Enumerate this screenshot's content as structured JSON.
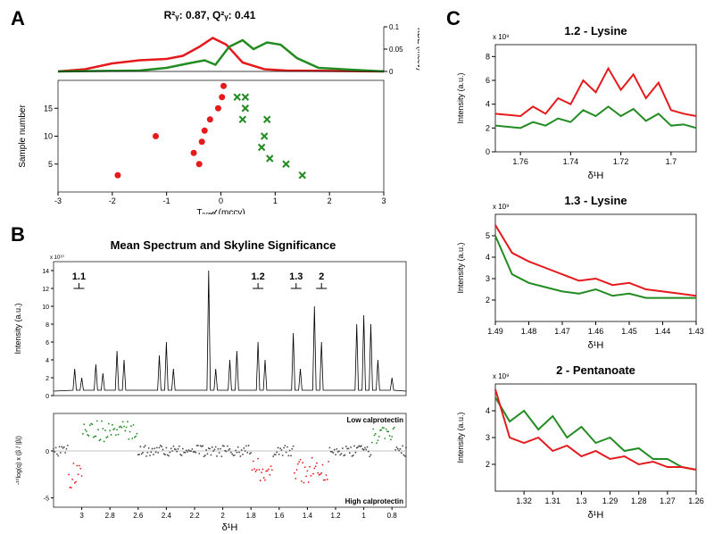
{
  "panelA": {
    "label": "A",
    "stats": "R²ᵧ: 0.87, Q²ᵧ: 0.41",
    "kde": {
      "xlim": [
        -3,
        3
      ],
      "ylim": [
        0,
        0.1
      ],
      "yticks": [
        0,
        0.05,
        0.1
      ],
      "red_curve": [
        [
          -3,
          0
        ],
        [
          -2.5,
          0.005
        ],
        [
          -2.0,
          0.018
        ],
        [
          -1.5,
          0.025
        ],
        [
          -1.0,
          0.028
        ],
        [
          -0.7,
          0.035
        ],
        [
          -0.4,
          0.055
        ],
        [
          -0.15,
          0.075
        ],
        [
          0.1,
          0.06
        ],
        [
          0.4,
          0.02
        ],
        [
          0.8,
          0.005
        ],
        [
          1.2,
          0.002
        ],
        [
          3,
          0
        ]
      ],
      "green_curve": [
        [
          -3,
          0
        ],
        [
          -1.5,
          0.002
        ],
        [
          -1.0,
          0.008
        ],
        [
          -0.6,
          0.018
        ],
        [
          -0.3,
          0.025
        ],
        [
          -0.1,
          0.015
        ],
        [
          0.15,
          0.055
        ],
        [
          0.4,
          0.07
        ],
        [
          0.6,
          0.05
        ],
        [
          0.85,
          0.065
        ],
        [
          1.1,
          0.06
        ],
        [
          1.4,
          0.03
        ],
        [
          1.8,
          0.008
        ],
        [
          3,
          0
        ]
      ],
      "red_color": "#e41a1c",
      "green_color": "#228b22",
      "line_width": 2.5
    },
    "scatter": {
      "xlim": [
        -3,
        3
      ],
      "ylim": [
        0,
        20
      ],
      "xticks": [
        -3,
        -2,
        -1,
        0,
        1,
        2,
        3
      ],
      "yticks": [
        5,
        10,
        15
      ],
      "xlabel": "Tₚᵣₑ𝒹 (mccv)",
      "ylabel": "Sample number",
      "ylabel2": "KDE (mccv)",
      "red_points": [
        [
          -1.9,
          3
        ],
        [
          -0.5,
          7
        ],
        [
          -0.4,
          5
        ],
        [
          -0.35,
          9
        ],
        [
          -0.3,
          11
        ],
        [
          -1.2,
          10
        ],
        [
          -0.2,
          13
        ],
        [
          -0.05,
          15
        ],
        [
          0.02,
          17
        ],
        [
          0.05,
          19
        ]
      ],
      "green_points": [
        [
          0.3,
          17
        ],
        [
          0.45,
          17
        ],
        [
          0.4,
          13
        ],
        [
          0.45,
          15
        ],
        [
          0.85,
          13
        ],
        [
          0.8,
          10
        ],
        [
          0.75,
          8
        ],
        [
          0.9,
          6
        ],
        [
          1.2,
          5
        ],
        [
          1.5,
          3
        ]
      ],
      "red_color": "#e41a1c",
      "green_color": "#228b22"
    }
  },
  "panelB": {
    "label": "B",
    "title": "Mean Spectrum and Skyline Significance",
    "spectrum": {
      "xlim": [
        3.2,
        0.7
      ],
      "ylim": [
        0,
        150000000000.0
      ],
      "ylabel": "Intensity (a.u.)",
      "y_exp": "x 10¹⁰",
      "yticks": [
        0,
        2,
        4,
        6,
        8,
        10,
        12,
        14
      ],
      "annotations": [
        {
          "label": "1.1",
          "x": 3.02
        },
        {
          "label": "1.2",
          "x": 1.75
        },
        {
          "label": "1.3",
          "x": 1.48
        },
        {
          "label": "2",
          "x": 1.3
        }
      ],
      "color": "#000000"
    },
    "significance": {
      "xlim": [
        3.2,
        0.7
      ],
      "ylim": [
        -6,
        4
      ],
      "yticks": [
        -5,
        0
      ],
      "xticks": [
        3,
        2.8,
        2.6,
        2.4,
        2.2,
        2,
        1.8,
        1.6,
        1.4,
        1.2,
        1,
        0.8
      ],
      "xlabel": "δ¹H",
      "ylabel": "-¹⁰log(q) x (β / |β|)",
      "low_label": "Low calprotectin",
      "high_label": "High calprotectin",
      "green_color": "#228b22",
      "red_color": "#e41a1c"
    }
  },
  "panelC": {
    "label": "C",
    "charts": [
      {
        "title": "1.2 - Lysine",
        "xlim": [
          1.77,
          1.69
        ],
        "ylim": [
          0,
          8000000000.0
        ],
        "xticks": [
          1.76,
          1.74,
          1.72,
          1.7
        ],
        "yticks": [
          0,
          2,
          4,
          6,
          8
        ],
        "y_exp": "x 10⁹",
        "xlabel": "δ¹H",
        "ylabel": "Intensity (a.u.)",
        "red": [
          [
            1.77,
            3.2
          ],
          [
            1.76,
            3.0
          ],
          [
            1.755,
            3.8
          ],
          [
            1.75,
            3.2
          ],
          [
            1.745,
            4.5
          ],
          [
            1.74,
            4.0
          ],
          [
            1.735,
            6.0
          ],
          [
            1.73,
            5.0
          ],
          [
            1.725,
            7.0
          ],
          [
            1.72,
            5.2
          ],
          [
            1.715,
            6.5
          ],
          [
            1.71,
            4.5
          ],
          [
            1.705,
            5.8
          ],
          [
            1.7,
            3.5
          ],
          [
            1.695,
            3.2
          ],
          [
            1.69,
            3.0
          ]
        ],
        "green": [
          [
            1.77,
            2.2
          ],
          [
            1.76,
            2.0
          ],
          [
            1.755,
            2.5
          ],
          [
            1.75,
            2.2
          ],
          [
            1.745,
            2.8
          ],
          [
            1.74,
            2.5
          ],
          [
            1.735,
            3.5
          ],
          [
            1.73,
            3.0
          ],
          [
            1.725,
            3.8
          ],
          [
            1.72,
            3.0
          ],
          [
            1.715,
            3.6
          ],
          [
            1.71,
            2.6
          ],
          [
            1.705,
            3.2
          ],
          [
            1.7,
            2.2
          ],
          [
            1.695,
            2.3
          ],
          [
            1.69,
            2.0
          ]
        ],
        "red_color": "#e41a1c",
        "green_color": "#228b22"
      },
      {
        "title": "1.3 - Lysine",
        "xlim": [
          1.49,
          1.43
        ],
        "ylim": [
          1,
          6000000000.0
        ],
        "xticks": [
          1.49,
          1.48,
          1.47,
          1.46,
          1.45,
          1.44,
          1.43
        ],
        "yticks": [
          2,
          3,
          4,
          5
        ],
        "y_exp": "x 10⁹",
        "xlabel": "δ¹H",
        "ylabel": "Intensity (a.u.)",
        "red": [
          [
            1.49,
            5.5
          ],
          [
            1.485,
            4.2
          ],
          [
            1.48,
            3.8
          ],
          [
            1.475,
            3.5
          ],
          [
            1.47,
            3.2
          ],
          [
            1.465,
            2.9
          ],
          [
            1.46,
            3.0
          ],
          [
            1.455,
            2.7
          ],
          [
            1.45,
            2.8
          ],
          [
            1.445,
            2.5
          ],
          [
            1.44,
            2.4
          ],
          [
            1.435,
            2.3
          ],
          [
            1.43,
            2.2
          ]
        ],
        "green": [
          [
            1.49,
            5.0
          ],
          [
            1.485,
            3.2
          ],
          [
            1.48,
            2.8
          ],
          [
            1.475,
            2.6
          ],
          [
            1.47,
            2.4
          ],
          [
            1.465,
            2.3
          ],
          [
            1.46,
            2.5
          ],
          [
            1.455,
            2.2
          ],
          [
            1.45,
            2.3
          ],
          [
            1.445,
            2.1
          ],
          [
            1.44,
            2.1
          ],
          [
            1.435,
            2.1
          ],
          [
            1.43,
            2.1
          ]
        ],
        "red_color": "#e41a1c",
        "green_color": "#228b22"
      },
      {
        "title": "2 - Pentanoate",
        "xlim": [
          1.33,
          1.26
        ],
        "ylim": [
          1,
          5000000000.0
        ],
        "xticks": [
          1.32,
          1.31,
          1.3,
          1.29,
          1.28,
          1.27,
          1.26
        ],
        "yticks": [
          2,
          3,
          4
        ],
        "y_exp": "x 10⁹",
        "xlabel": "δ¹H",
        "ylabel": "Intensity (a.u.)",
        "red": [
          [
            1.33,
            4.8
          ],
          [
            1.325,
            3.0
          ],
          [
            1.32,
            2.8
          ],
          [
            1.315,
            3.0
          ],
          [
            1.31,
            2.5
          ],
          [
            1.305,
            2.7
          ],
          [
            1.3,
            2.3
          ],
          [
            1.295,
            2.5
          ],
          [
            1.29,
            2.2
          ],
          [
            1.285,
            2.3
          ],
          [
            1.28,
            2.0
          ],
          [
            1.275,
            2.1
          ],
          [
            1.27,
            1.9
          ],
          [
            1.265,
            1.9
          ],
          [
            1.26,
            1.8
          ]
        ],
        "green": [
          [
            1.33,
            4.5
          ],
          [
            1.325,
            3.6
          ],
          [
            1.32,
            4.0
          ],
          [
            1.315,
            3.3
          ],
          [
            1.31,
            3.8
          ],
          [
            1.305,
            3.0
          ],
          [
            1.3,
            3.4
          ],
          [
            1.295,
            2.8
          ],
          [
            1.29,
            3.0
          ],
          [
            1.285,
            2.5
          ],
          [
            1.28,
            2.6
          ],
          [
            1.275,
            2.2
          ],
          [
            1.27,
            2.2
          ],
          [
            1.265,
            1.9
          ],
          [
            1.26,
            1.8
          ]
        ],
        "red_color": "#e41a1c",
        "green_color": "#228b22"
      }
    ]
  }
}
